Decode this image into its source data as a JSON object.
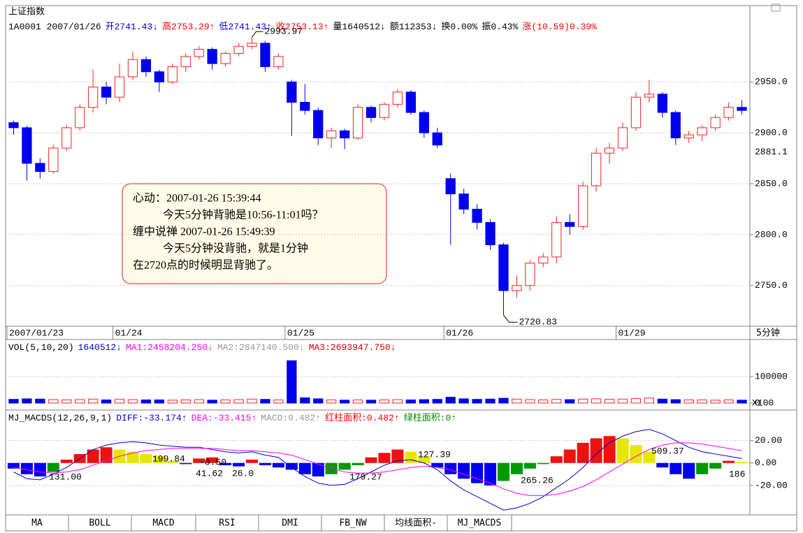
{
  "chart_data": [
    {
      "type": "candlestick",
      "title": "上证指数",
      "info": [
        {
          "text": "1A0001 2007/01/26",
          "color": "#000000"
        },
        {
          "text": "开2741.43↓",
          "color": "#0000cc"
        },
        {
          "text": "高2753.29↑",
          "color": "#ff0000"
        },
        {
          "text": "低2741.43↑",
          "color": "#0000cc"
        },
        {
          "text": "收2753.13↑",
          "color": "#ff0000"
        },
        {
          "text": "量1640512↓",
          "color": "#000000"
        },
        {
          "text": "额112353↓",
          "color": "#000000"
        },
        {
          "text": "换0.00%",
          "color": "#000000"
        },
        {
          "text": "振0.43%",
          "color": "#000000"
        },
        {
          "text": "涨(10.59)0.39%",
          "color": "#ff0000"
        }
      ],
      "categories": [
        "2007/01/23",
        null,
        null,
        null,
        null,
        null,
        null,
        null,
        "01/24",
        null,
        null,
        null,
        null,
        null,
        null,
        null,
        null,
        null,
        null,
        null,
        null,
        "01/25",
        null,
        null,
        null,
        null,
        null,
        null,
        null,
        null,
        null,
        null,
        null,
        "01/26",
        null,
        null,
        null,
        null,
        null,
        null,
        null,
        null,
        null,
        null,
        null,
        null,
        "01/29",
        null,
        null,
        null,
        null,
        null,
        null,
        null,
        null,
        null
      ],
      "open": [
        2910,
        2905,
        2870,
        2862,
        2885,
        2905,
        2925,
        2945,
        2935,
        2955,
        2972,
        2960,
        2950,
        2965,
        2975,
        2982,
        2968,
        2978,
        2985,
        2988,
        2965,
        2950,
        2930,
        2922,
        2895,
        2902,
        2895,
        2925,
        2915,
        2928,
        2940,
        2920,
        2900,
        2855,
        2840,
        2825,
        2812,
        2790,
        2745,
        2750,
        2772,
        2778,
        2812,
        2808,
        2848,
        2880,
        2885,
        2905,
        2935,
        2938,
        2920,
        2895,
        2898,
        2905,
        2915,
        2925
      ],
      "high": [
        2912,
        2907,
        2875,
        2888,
        2908,
        2928,
        2962,
        2950,
        2968,
        2980,
        2975,
        2962,
        2968,
        2978,
        2985,
        2984,
        2980,
        2988,
        2993.97,
        2990,
        2978,
        2952,
        2948,
        2925,
        2905,
        2904,
        2928,
        2927,
        2930,
        2943,
        2942,
        2922,
        2905,
        2860,
        2845,
        2830,
        2815,
        2792,
        2760,
        2775,
        2782,
        2818,
        2820,
        2852,
        2885,
        2890,
        2910,
        2940,
        2952,
        2940,
        2922,
        2902,
        2908,
        2918,
        2930,
        2932
      ],
      "low": [
        2898,
        2853,
        2855,
        2860,
        2882,
        2902,
        2920,
        2928,
        2930,
        2952,
        2955,
        2940,
        2948,
        2960,
        2972,
        2962,
        2965,
        2975,
        2982,
        2960,
        2962,
        2897,
        2918,
        2888,
        2885,
        2884,
        2893,
        2910,
        2912,
        2925,
        2918,
        2895,
        2885,
        2790,
        2820,
        2805,
        2785,
        2720.83,
        2738,
        2745,
        2768,
        2772,
        2800,
        2805,
        2842,
        2870,
        2882,
        2902,
        2930,
        2915,
        2888,
        2890,
        2892,
        2902,
        2912,
        2918
      ],
      "close": [
        2905,
        2870,
        2862,
        2885,
        2905,
        2925,
        2945,
        2935,
        2955,
        2972,
        2960,
        2950,
        2965,
        2975,
        2982,
        2968,
        2978,
        2985,
        2988,
        2965,
        2975,
        2930,
        2922,
        2895,
        2902,
        2895,
        2925,
        2915,
        2928,
        2940,
        2920,
        2900,
        2888,
        2840,
        2825,
        2812,
        2790,
        2745,
        2750,
        2772,
        2778,
        2812,
        2808,
        2848,
        2880,
        2885,
        2905,
        2935,
        2938,
        2920,
        2895,
        2898,
        2905,
        2915,
        2925,
        2922
      ],
      "up_color": "#ff2020",
      "down_color": "#0000ee",
      "ylim": [
        2710,
        3025
      ],
      "yticks": [
        {
          "value": 2750,
          "label": "2750.0"
        },
        {
          "value": 2800,
          "label": "2800.0"
        },
        {
          "value": 2850,
          "label": "2850.0"
        },
        {
          "value": 2900,
          "label": "2900.0"
        },
        {
          "value": 2950,
          "label": "2950.0"
        }
      ],
      "grid": true,
      "marker": {
        "value": 2881.1,
        "color": "#ff0000"
      },
      "period": "5分钟",
      "note": [
        "心动：2007-01-26 15:39:44",
        "今天5分钟背驰是10:56-11:01吗？",
        "缠中说禅 2007-01-26 15:49:39",
        "今天5分钟没背驰，就是1分钟",
        "在2720点的时候明显背驰了。"
      ]
    },
    {
      "type": "volume",
      "info": [
        {
          "text": "VOL(5,10,20)",
          "color": "#000000"
        },
        {
          "text": "1640512↓",
          "color": "#0000cc"
        },
        {
          "text": "MA1:2458204.250↓",
          "color": "#ff00ff"
        },
        {
          "text": "MA2:2847140.500↓",
          "color": "#999999"
        },
        {
          "text": "MA3:2693947.750↓",
          "color": "#cc0000"
        }
      ],
      "values": [
        14000,
        16000,
        15000,
        13000,
        12000,
        13000,
        15000,
        12000,
        14000,
        13000,
        12000,
        12000,
        11000,
        12000,
        13000,
        11000,
        12000,
        13000,
        15000,
        14000,
        12000,
        160000,
        20000,
        16000,
        12000,
        11000,
        12000,
        11000,
        12000,
        13000,
        12000,
        13000,
        14000,
        22000,
        16000,
        14000,
        15000,
        18000,
        15000,
        13000,
        12000,
        14000,
        13000,
        15000,
        16000,
        14000,
        15000,
        17000,
        19000,
        15000,
        13000,
        12000,
        12000,
        11000,
        12000,
        11000
      ],
      "ylim": [
        0,
        190000
      ],
      "yticks": [
        0,
        100000
      ],
      "grid": true,
      "multiplier": "X100"
    },
    {
      "type": "macd",
      "info": [
        {
          "text": "MJ_MACDS(12,26,9,1)",
          "color": "#000000"
        },
        {
          "text": "DIFF:-33.174↑",
          "color": "#0000cc"
        },
        {
          "text": "DEA:-33.415↑",
          "color": "#ff00ff"
        },
        {
          "text": "MACD:0.482↑",
          "color": "#999999"
        },
        {
          "text": "红柱面积:0.482↑",
          "color": "#ff0000"
        },
        {
          "text": "绿柱面积:0↑",
          "color": "#008800"
        }
      ],
      "values": [
        -5,
        -10,
        -12,
        -8,
        3,
        8,
        12,
        14,
        12,
        10,
        8,
        6,
        2,
        -1,
        4,
        5,
        -2,
        -3,
        3,
        -2,
        -4,
        -6,
        -10,
        -12,
        -10,
        -6,
        -2,
        5,
        9,
        12,
        10,
        6,
        -4,
        -10,
        -14,
        -18,
        -20,
        -16,
        -10,
        -5,
        -1,
        6,
        12,
        18,
        22,
        24,
        22,
        16,
        10,
        -4,
        -10,
        -14,
        -10,
        -5,
        2,
        1
      ],
      "bar_colors": [
        "#ee1111",
        "#e6e600",
        "#009900",
        "#0000ee"
      ],
      "series": [
        {
          "color": "#0000cc",
          "values": [
            -8,
            -14,
            -15,
            -10,
            -4,
            4,
            12,
            16,
            18,
            19,
            18,
            16,
            15,
            14,
            14,
            12,
            10,
            9,
            10,
            7,
            5,
            -4,
            -12,
            -18,
            -20,
            -19,
            -14,
            -8,
            -2,
            2,
            3,
            0,
            -6,
            -16,
            -24,
            -30,
            -36,
            -42,
            -40,
            -36,
            -30,
            -22,
            -14,
            -4,
            8,
            18,
            24,
            28,
            30,
            26,
            20,
            14,
            10,
            8,
            6,
            4
          ]
        },
        {
          "color": "#ff00ff",
          "values": [
            -4,
            -6,
            -8,
            -9,
            -8,
            -6,
            -2,
            2,
            6,
            9,
            11,
            12,
            13,
            13,
            13,
            13,
            12,
            11,
            11,
            10,
            9,
            7,
            3,
            -1,
            -5,
            -8,
            -9,
            -9,
            -8,
            -6,
            -4,
            -3,
            -4,
            -6,
            -10,
            -14,
            -18,
            -23,
            -27,
            -29,
            -29,
            -28,
            -25,
            -21,
            -15,
            -8,
            -1,
            6,
            12,
            16,
            18,
            18,
            17,
            15,
            13,
            11
          ]
        }
      ],
      "ylim": [
        -45,
        36
      ],
      "yticks": [
        {
          "value": -20,
          "label": "-20.00"
        },
        {
          "value": 0,
          "label": "0.00"
        },
        {
          "value": 20,
          "label": "20.00"
        }
      ],
      "grid": true,
      "annotations": [
        {
          "text": "131.00",
          "color": "#008800"
        },
        {
          "text": "199.84",
          "color": "#ff0000"
        },
        {
          "text": "-0.50",
          "color": "#ff0000"
        },
        {
          "text": "41.62",
          "color": "#008800"
        },
        {
          "text": "26.0",
          "color": "#008800"
        },
        {
          "text": "179.27",
          "color": "#008800"
        },
        {
          "text": "127.39",
          "color": "#ff0000"
        },
        {
          "text": "265.26",
          "color": "#008800"
        },
        {
          "text": "509.37",
          "color": "#ff0000"
        },
        {
          "text": "186",
          "color": "#008800"
        }
      ]
    }
  ],
  "tabs": [
    "MA",
    "BOLL",
    "MACD",
    "RSI",
    "DMI",
    "FB_NW",
    "均线面积-",
    "MJ_MACDS"
  ]
}
